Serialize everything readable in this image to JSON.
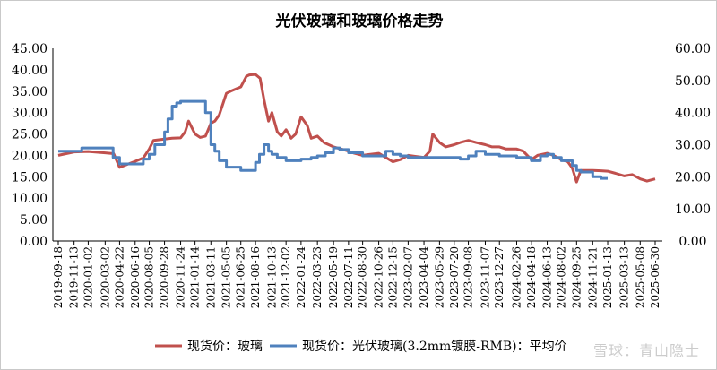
{
  "watermark": "雪球：青山隐士",
  "chart_data": {
    "type": "line",
    "title": "光伏玻璃和玻璃价格走势",
    "xlabel": "",
    "ylabel": "",
    "y_left": {
      "range": [
        0,
        45
      ],
      "ticks": [
        "0.00",
        "5.00",
        "10.00",
        "15.00",
        "20.00",
        "25.00",
        "30.00",
        "35.00",
        "40.00",
        "45.00"
      ]
    },
    "y_right": {
      "range": [
        0,
        60
      ],
      "ticks": [
        "0.00",
        "10.00",
        "20.00",
        "30.00",
        "40.00",
        "50.00",
        "60.00"
      ]
    },
    "x_ticks": [
      "2019-09-18",
      "2019-11-13",
      "2020-01-02",
      "2020-03-02",
      "2020-04-22",
      "2020-06-16",
      "2020-08-05",
      "2020-09-28",
      "2020-11-24",
      "2021-01-14",
      "2021-03-11",
      "2021-05-05",
      "2021-06-25",
      "2021-08-16",
      "2021-10-13",
      "2021-12-02",
      "2022-01-24",
      "2022-03-23",
      "2022-05-19",
      "2022-07-11",
      "2022-08-30",
      "2022-10-26",
      "2022-12-15",
      "2023-02-07",
      "2023-04-04",
      "2023-05-29",
      "2023-07-20",
      "2023-09-08",
      "2023-11-07",
      "2023-12-27",
      "2024-02-26",
      "2024-04-18",
      "2024-06-13",
      "2024-08-02",
      "2024-09-25",
      "2024-11-21",
      "2025-01-13",
      "2025-03-13",
      "2025-05-08",
      "2025-06-30"
    ],
    "legend": {
      "position": "bottom"
    },
    "grid": false,
    "series": [
      {
        "name": "现货价：玻璃",
        "axis": "left",
        "color": "#c0504d",
        "x": [
          "2019-09-18",
          "2019-11-13",
          "2020-01-02",
          "2020-03-02",
          "2020-04-01",
          "2020-04-22",
          "2020-05-15",
          "2020-06-16",
          "2020-07-15",
          "2020-08-05",
          "2020-08-20",
          "2020-09-28",
          "2020-10-25",
          "2020-11-24",
          "2020-12-10",
          "2020-12-22",
          "2021-01-14",
          "2021-02-01",
          "2021-02-20",
          "2021-03-11",
          "2021-03-25",
          "2021-04-10",
          "2021-05-05",
          "2021-05-20",
          "2021-06-25",
          "2021-07-15",
          "2021-07-25",
          "2021-08-16",
          "2021-09-01",
          "2021-09-15",
          "2021-10-01",
          "2021-10-13",
          "2021-11-01",
          "2021-11-15",
          "2021-12-02",
          "2021-12-20",
          "2022-01-05",
          "2022-01-24",
          "2022-02-15",
          "2022-03-01",
          "2022-03-23",
          "2022-04-15",
          "2022-05-19",
          "2022-06-15",
          "2022-07-11",
          "2022-08-01",
          "2022-08-30",
          "2022-09-20",
          "2022-10-26",
          "2022-11-20",
          "2022-12-15",
          "2023-01-10",
          "2023-02-07",
          "2023-03-01",
          "2023-04-04",
          "2023-04-25",
          "2023-05-05",
          "2023-05-29",
          "2023-06-20",
          "2023-07-20",
          "2023-08-10",
          "2023-09-08",
          "2023-10-05",
          "2023-11-07",
          "2023-12-01",
          "2023-12-27",
          "2024-01-20",
          "2024-02-26",
          "2024-03-20",
          "2024-04-18",
          "2024-05-10",
          "2024-06-13",
          "2024-07-05",
          "2024-08-02",
          "2024-08-25",
          "2024-09-10",
          "2024-09-25",
          "2024-10-10",
          "2024-11-21",
          "2024-12-20",
          "2025-01-13",
          "2025-02-10",
          "2025-03-13",
          "2025-04-10",
          "2025-05-08",
          "2025-06-01",
          "2025-06-30"
        ],
        "values": [
          20.0,
          20.8,
          20.9,
          20.6,
          20.4,
          17.2,
          17.8,
          18.6,
          19.4,
          21.5,
          23.5,
          23.8,
          24.0,
          24.1,
          25.5,
          28.0,
          25.0,
          24.2,
          24.5,
          27.5,
          28.0,
          29.5,
          34.5,
          35.0,
          36.0,
          38.5,
          38.8,
          38.9,
          38.0,
          33.0,
          28.0,
          30.0,
          25.5,
          24.5,
          26.0,
          24.0,
          25.0,
          29.0,
          27.0,
          24.0,
          24.5,
          23.0,
          22.0,
          21.5,
          21.0,
          20.5,
          20.0,
          20.2,
          20.5,
          19.5,
          18.5,
          19.0,
          20.0,
          19.8,
          19.5,
          21.0,
          25.0,
          23.0,
          22.0,
          22.5,
          23.0,
          23.5,
          23.0,
          22.5,
          22.0,
          22.0,
          21.5,
          21.5,
          21.0,
          19.0,
          20.0,
          20.5,
          20.0,
          19.0,
          18.5,
          17.0,
          13.8,
          16.5,
          16.5,
          16.4,
          16.3,
          15.8,
          15.2,
          15.5,
          14.5,
          14.0,
          14.5
        ]
      },
      {
        "name": "现货价：光伏玻璃(3.2mm镀膜-RMB)：平均价",
        "axis": "right",
        "color": "#4f81bd",
        "x": [
          "2019-09-18",
          "2019-11-13",
          "2019-12-10",
          "2020-01-02",
          "2020-03-02",
          "2020-03-30",
          "2020-04-22",
          "2020-06-16",
          "2020-07-15",
          "2020-08-05",
          "2020-08-25",
          "2020-09-28",
          "2020-10-10",
          "2020-10-25",
          "2020-11-10",
          "2020-11-24",
          "2021-01-14",
          "2021-02-20",
          "2021-03-11",
          "2021-03-25",
          "2021-04-10",
          "2021-05-05",
          "2021-06-25",
          "2021-07-15",
          "2021-08-16",
          "2021-08-30",
          "2021-09-15",
          "2021-10-01",
          "2021-10-13",
          "2021-11-01",
          "2021-11-20",
          "2021-12-02",
          "2022-01-24",
          "2022-03-01",
          "2022-03-23",
          "2022-04-20",
          "2022-05-19",
          "2022-06-10",
          "2022-07-11",
          "2022-08-30",
          "2022-10-26",
          "2022-11-20",
          "2022-12-15",
          "2023-01-10",
          "2023-02-07",
          "2023-04-04",
          "2023-05-29",
          "2023-07-20",
          "2023-08-10",
          "2023-09-08",
          "2023-10-05",
          "2023-11-07",
          "2023-12-27",
          "2024-02-26",
          "2024-04-18",
          "2024-05-20",
          "2024-06-13",
          "2024-07-05",
          "2024-08-02",
          "2024-09-10",
          "2024-09-25",
          "2024-10-10",
          "2024-11-21",
          "2024-12-20",
          "2025-01-13"
        ],
        "values": [
          28.0,
          28.0,
          29.0,
          29.0,
          29.0,
          26.0,
          24.0,
          24.0,
          25.5,
          27.0,
          30.0,
          34.0,
          38.0,
          42.0,
          43.0,
          43.5,
          43.5,
          40.0,
          30.0,
          28.0,
          25.0,
          23.0,
          22.0,
          22.0,
          24.5,
          27.0,
          30.0,
          28.0,
          27.0,
          26.0,
          26.0,
          25.0,
          25.5,
          26.0,
          26.5,
          27.5,
          29.0,
          28.5,
          27.5,
          26.5,
          26.5,
          28.0,
          27.0,
          26.5,
          26.0,
          26.0,
          26.0,
          26.0,
          25.5,
          26.5,
          28.0,
          27.0,
          26.5,
          26.0,
          25.0,
          26.5,
          27.0,
          26.0,
          25.0,
          23.5,
          22.0,
          21.5,
          20.0,
          19.5,
          19.5
        ]
      }
    ]
  }
}
